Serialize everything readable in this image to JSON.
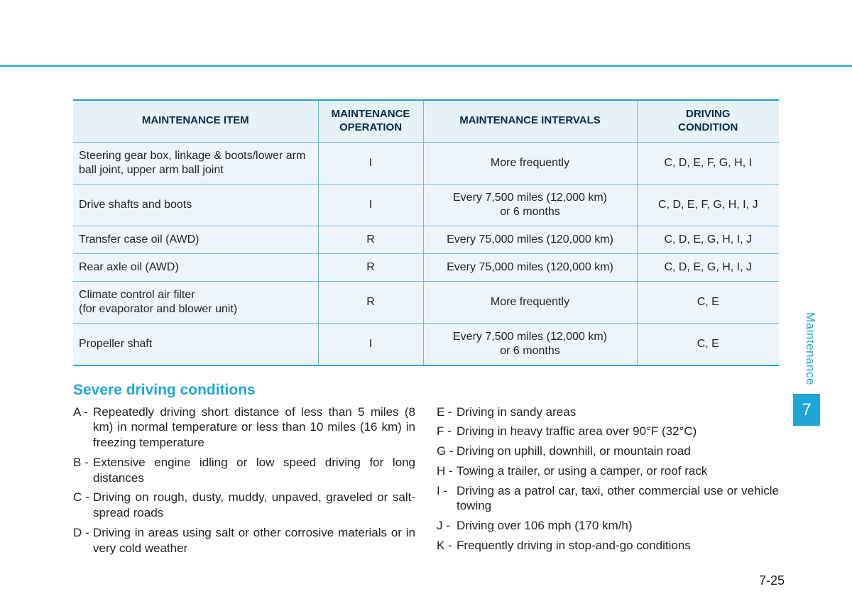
{
  "colors": {
    "accent": "#1ea6d9",
    "row_bg": "#edf5fa",
    "header_bg": "#e6f1f8",
    "border": "#6fb8d8",
    "text": "#222222",
    "header_text": "#0b2b44"
  },
  "table": {
    "headers": {
      "item": "MAINTENANCE ITEM",
      "operation": "MAINTENANCE\nOPERATION",
      "intervals": "MAINTENANCE INTERVALS",
      "condition": "DRIVING\nCONDITION"
    },
    "rows": [
      {
        "item": "Steering gear box, linkage & boots/lower arm ball joint, upper arm ball joint",
        "operation": "I",
        "intervals": "More frequently",
        "condition": "C, D, E, F, G, H, I"
      },
      {
        "item": "Drive shafts and boots",
        "operation": "I",
        "intervals": "Every 7,500 miles (12,000 km)\nor 6 months",
        "condition": "C, D, E, F, G, H, I, J"
      },
      {
        "item": "Transfer case oil (AWD)",
        "operation": "R",
        "intervals": "Every 75,000 miles (120,000 km)",
        "condition": "C, D, E, G, H, I, J"
      },
      {
        "item": "Rear axle oil (AWD)",
        "operation": "R",
        "intervals": "Every 75,000 miles (120,000 km)",
        "condition": "C, D, E, G, H, I, J"
      },
      {
        "item": "Climate control air filter\n(for evaporator and blower unit)",
        "operation": "R",
        "intervals": "More frequently",
        "condition": "C, E"
      },
      {
        "item": "Propeller shaft",
        "operation": "I",
        "intervals": "Every 7,500 miles (12,000 km)\nor 6 months",
        "condition": "C, E"
      }
    ]
  },
  "section_title": "Severe driving conditions",
  "conditions": {
    "left": [
      {
        "key": "A -",
        "text": "Repeatedly driving short distance of less than 5 miles (8 km) in normal temperature or less than 10 miles (16 km) in freezing temperature"
      },
      {
        "key": "B -",
        "text": "Extensive engine idling or low speed driving for long distances"
      },
      {
        "key": "C -",
        "text": "Driving on rough, dusty, muddy, unpaved, graveled or salt-spread roads"
      },
      {
        "key": "D -",
        "text": "Driving in areas using salt or other corrosive materials or in very cold weather"
      }
    ],
    "right": [
      {
        "key": "E -",
        "text": "Driving in sandy areas"
      },
      {
        "key": "F -",
        "text": "Driving in heavy traffic area over 90°F (32°C)"
      },
      {
        "key": "G -",
        "text": "Driving on uphill, downhill, or mountain road"
      },
      {
        "key": "H -",
        "text": "Towing a trailer, or using a camper, or roof rack"
      },
      {
        "key": "I -",
        "text": "Driving as a patrol car, taxi, other commercial use or vehicle towing"
      },
      {
        "key": "J -",
        "text": "Driving over 106 mph (170 km/h)"
      },
      {
        "key": "K -",
        "text": "Frequently driving in stop-and-go conditions"
      }
    ]
  },
  "side": {
    "label": "Maintenance",
    "chapter": "7"
  },
  "page_number": "7-25"
}
